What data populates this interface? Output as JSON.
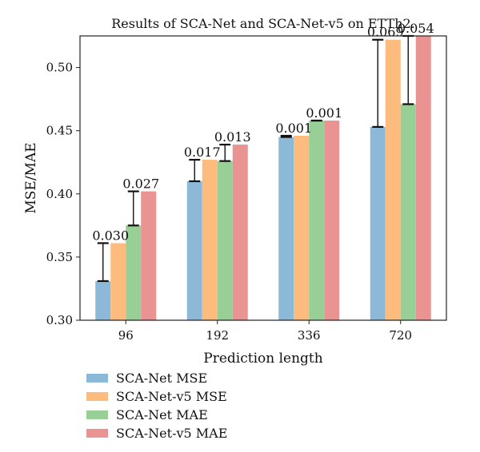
{
  "chart_data": {
    "type": "bar",
    "title": "Results of SCA-Net and SCA-Net-v5 on ETTh2.",
    "xlabel": "Prediction length",
    "ylabel": "MSE/MAE",
    "categories": [
      "96",
      "192",
      "336",
      "720"
    ],
    "ylim": [
      0.3,
      0.525
    ],
    "yticks": [
      "0.30",
      "0.35",
      "0.40",
      "0.45",
      "0.50"
    ],
    "series": [
      {
        "name": "SCA-Net MSE",
        "color": "#8db9d9",
        "values": [
          0.331,
          0.41,
          0.445,
          0.453
        ]
      },
      {
        "name": "SCA-Net-v5 MSE",
        "color": "#fdbb7e",
        "values": [
          0.361,
          0.427,
          0.446,
          0.522
        ]
      },
      {
        "name": "SCA-Net MAE",
        "color": "#97cf96",
        "values": [
          0.375,
          0.426,
          0.458,
          0.471
        ]
      },
      {
        "name": "SCA-Net-v5 MAE",
        "color": "#ea9393",
        "values": [
          0.402,
          0.439,
          0.458,
          0.525
        ]
      }
    ],
    "annotations": [
      {
        "category": "96",
        "label": "0.030",
        "from_series": 0,
        "to_series": 1
      },
      {
        "category": "96",
        "label": "0.027",
        "from_series": 2,
        "to_series": 3
      },
      {
        "category": "192",
        "label": "0.017",
        "from_series": 0,
        "to_series": 1
      },
      {
        "category": "192",
        "label": "0.013",
        "from_series": 2,
        "to_series": 3
      },
      {
        "category": "336",
        "label": "0.001",
        "from_series": 0,
        "to_series": 1
      },
      {
        "category": "336",
        "label": "0.001",
        "from_series": 2,
        "to_series": 3
      },
      {
        "category": "720",
        "label": "0.069",
        "from_series": 0,
        "to_series": 1
      },
      {
        "category": "720",
        "label": "0.054",
        "from_series": 2,
        "to_series": 3
      }
    ],
    "legend_position": "bottom-left",
    "grid": false
  }
}
